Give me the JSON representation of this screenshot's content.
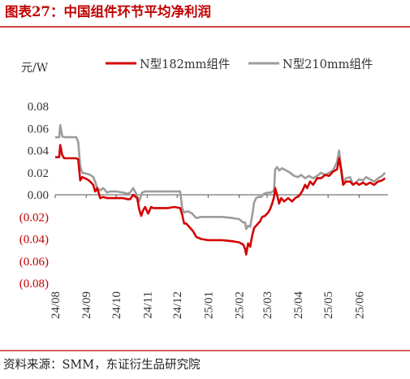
{
  "title": "图表27：中国组件环节平均净利润",
  "source": "资料来源：SMM，东证衍生品研究院",
  "chart_data": {
    "type": "line",
    "unit_label": "元/W",
    "ylim": [
      -0.08,
      0.08
    ],
    "y_ticks": [
      {
        "value": 0.08,
        "label": "0.08"
      },
      {
        "value": 0.06,
        "label": "0.06"
      },
      {
        "value": 0.04,
        "label": "0.04"
      },
      {
        "value": 0.02,
        "label": "0.02"
      },
      {
        "value": 0.0,
        "label": "0.00"
      },
      {
        "value": -0.02,
        "label": "(0.02)"
      },
      {
        "value": -0.04,
        "label": "(0.04)"
      },
      {
        "value": -0.06,
        "label": "(0.06)"
      },
      {
        "value": -0.08,
        "label": "(0.08)"
      }
    ],
    "x_range": [
      "2024-08-01",
      "2025-06-30"
    ],
    "x_ticks": [
      {
        "date": "2024-08-01",
        "label": "24/08"
      },
      {
        "date": "2024-09-01",
        "label": "24/09"
      },
      {
        "date": "2024-10-01",
        "label": "24/10"
      },
      {
        "date": "2024-11-01",
        "label": "24/11"
      },
      {
        "date": "2024-12-01",
        "label": "24/12"
      },
      {
        "date": "2025-01-01",
        "label": "25/01"
      },
      {
        "date": "2025-02-01",
        "label": "25/02"
      },
      {
        "date": "2025-03-01",
        "label": "25/03"
      },
      {
        "date": "2025-04-01",
        "label": "25/04"
      },
      {
        "date": "2025-05-01",
        "label": "25/05"
      },
      {
        "date": "2025-06-01",
        "label": "25/06"
      }
    ],
    "grid": false,
    "legend_position": "top",
    "series": [
      {
        "name": "N型182mm组件",
        "color": "#d40000",
        "points": [
          [
            "2024-08-01",
            0.034
          ],
          [
            "2024-08-05",
            0.034
          ],
          [
            "2024-08-06",
            0.045
          ],
          [
            "2024-08-08",
            0.036
          ],
          [
            "2024-08-10",
            0.033
          ],
          [
            "2024-08-22",
            0.033
          ],
          [
            "2024-08-24",
            0.032
          ],
          [
            "2024-08-26",
            0.013
          ],
          [
            "2024-08-28",
            0.016
          ],
          [
            "2024-09-02",
            0.014
          ],
          [
            "2024-09-05",
            0.012
          ],
          [
            "2024-09-08",
            0.009
          ],
          [
            "2024-09-10",
            0.003
          ],
          [
            "2024-09-12",
            0.006
          ],
          [
            "2024-09-14",
            0.0
          ],
          [
            "2024-09-15",
            -0.003
          ],
          [
            "2024-09-18",
            -0.002
          ],
          [
            "2024-09-22",
            -0.003
          ],
          [
            "2024-09-25",
            -0.003
          ],
          [
            "2024-10-01",
            -0.003
          ],
          [
            "2024-10-08",
            -0.003
          ],
          [
            "2024-10-12",
            -0.004
          ],
          [
            "2024-10-15",
            -0.004
          ],
          [
            "2024-10-18",
            0.0
          ],
          [
            "2024-10-22",
            -0.003
          ],
          [
            "2024-10-24",
            -0.013
          ],
          [
            "2024-10-26",
            -0.019
          ],
          [
            "2024-10-28",
            -0.014
          ],
          [
            "2024-10-30",
            -0.011
          ],
          [
            "2024-11-02",
            -0.017
          ],
          [
            "2024-11-05",
            -0.011
          ],
          [
            "2024-11-07",
            -0.012
          ],
          [
            "2024-11-15",
            -0.012
          ],
          [
            "2024-11-22",
            -0.012
          ],
          [
            "2024-11-28",
            -0.011
          ],
          [
            "2024-12-04",
            -0.012
          ],
          [
            "2024-12-06",
            -0.018
          ],
          [
            "2024-12-08",
            -0.026
          ],
          [
            "2024-12-10",
            -0.026
          ],
          [
            "2024-12-13",
            -0.029
          ],
          [
            "2024-12-17",
            -0.033
          ],
          [
            "2024-12-20",
            -0.038
          ],
          [
            "2024-12-25",
            -0.04
          ],
          [
            "2025-01-01",
            -0.041
          ],
          [
            "2025-01-15",
            -0.041
          ],
          [
            "2025-01-25",
            -0.042
          ],
          [
            "2025-02-01",
            -0.043
          ],
          [
            "2025-02-05",
            -0.045
          ],
          [
            "2025-02-07",
            -0.049
          ],
          [
            "2025-02-08",
            -0.054
          ],
          [
            "2025-02-10",
            -0.044
          ],
          [
            "2025-02-12",
            -0.047
          ],
          [
            "2025-02-14",
            -0.037
          ],
          [
            "2025-02-16",
            -0.03
          ],
          [
            "2025-02-18",
            -0.028
          ],
          [
            "2025-02-20",
            -0.026
          ],
          [
            "2025-02-22",
            -0.024
          ],
          [
            "2025-02-24",
            -0.02
          ],
          [
            "2025-02-27",
            -0.019
          ],
          [
            "2025-03-02",
            -0.016
          ],
          [
            "2025-03-04",
            -0.013
          ],
          [
            "2025-03-06",
            -0.008
          ],
          [
            "2025-03-08",
            -0.002
          ],
          [
            "2025-03-09",
            0.006
          ],
          [
            "2025-03-11",
            0.0
          ],
          [
            "2025-03-13",
            -0.008
          ],
          [
            "2025-03-15",
            -0.003
          ],
          [
            "2025-03-18",
            -0.006
          ],
          [
            "2025-03-22",
            -0.003
          ],
          [
            "2025-03-26",
            -0.006
          ],
          [
            "2025-03-29",
            -0.003
          ],
          [
            "2025-04-02",
            -0.001
          ],
          [
            "2025-04-05",
            0.003
          ],
          [
            "2025-04-08",
            0.009
          ],
          [
            "2025-04-10",
            0.006
          ],
          [
            "2025-04-13",
            0.012
          ],
          [
            "2025-04-16",
            0.009
          ],
          [
            "2025-04-20",
            0.015
          ],
          [
            "2025-04-24",
            0.015
          ],
          [
            "2025-04-28",
            0.018
          ],
          [
            "2025-05-02",
            0.017
          ],
          [
            "2025-05-06",
            0.021
          ],
          [
            "2025-05-10",
            0.023
          ],
          [
            "2025-05-12",
            0.033
          ],
          [
            "2025-05-14",
            0.023
          ],
          [
            "2025-05-16",
            0.009
          ],
          [
            "2025-05-19",
            0.012
          ],
          [
            "2025-05-23",
            0.012
          ],
          [
            "2025-05-26",
            0.009
          ],
          [
            "2025-05-29",
            0.011
          ],
          [
            "2025-06-01",
            0.009
          ],
          [
            "2025-06-05",
            0.011
          ],
          [
            "2025-06-08",
            0.009
          ],
          [
            "2025-06-12",
            0.011
          ],
          [
            "2025-06-16",
            0.009
          ],
          [
            "2025-06-20",
            0.012
          ],
          [
            "2025-06-24",
            0.013
          ],
          [
            "2025-06-27",
            0.015
          ]
        ]
      },
      {
        "name": "N型210mm组件",
        "color": "#9c9c9c",
        "points": [
          [
            "2024-08-01",
            0.052
          ],
          [
            "2024-08-05",
            0.052
          ],
          [
            "2024-08-06",
            0.063
          ],
          [
            "2024-08-08",
            0.053
          ],
          [
            "2024-08-10",
            0.052
          ],
          [
            "2024-08-22",
            0.052
          ],
          [
            "2024-08-24",
            0.048
          ],
          [
            "2024-08-26",
            0.026
          ],
          [
            "2024-08-28",
            0.02
          ],
          [
            "2024-09-02",
            0.019
          ],
          [
            "2024-09-05",
            0.018
          ],
          [
            "2024-09-08",
            0.016
          ],
          [
            "2024-09-10",
            0.012
          ],
          [
            "2024-09-12",
            0.006
          ],
          [
            "2024-09-15",
            0.004
          ],
          [
            "2024-09-18",
            0.006
          ],
          [
            "2024-09-22",
            0.002
          ],
          [
            "2024-09-25",
            0.003
          ],
          [
            "2024-10-01",
            0.003
          ],
          [
            "2024-10-08",
            0.002
          ],
          [
            "2024-10-12",
            0.001
          ],
          [
            "2024-10-15",
            0.002
          ],
          [
            "2024-10-18",
            0.006
          ],
          [
            "2024-10-21",
            0.001
          ],
          [
            "2024-10-24",
            -0.006
          ],
          [
            "2024-10-27",
            0.002
          ],
          [
            "2024-10-30",
            0.003
          ],
          [
            "2024-11-05",
            0.003
          ],
          [
            "2024-11-12",
            0.003
          ],
          [
            "2024-11-20",
            0.003
          ],
          [
            "2024-11-28",
            0.003
          ],
          [
            "2024-12-04",
            0.003
          ],
          [
            "2024-12-06",
            -0.012
          ],
          [
            "2024-12-08",
            -0.016
          ],
          [
            "2024-12-12",
            -0.015
          ],
          [
            "2024-12-16",
            -0.017
          ],
          [
            "2024-12-20",
            -0.021
          ],
          [
            "2024-12-25",
            -0.02
          ],
          [
            "2025-01-01",
            -0.02
          ],
          [
            "2025-01-15",
            -0.02
          ],
          [
            "2025-01-25",
            -0.021
          ],
          [
            "2025-02-01",
            -0.022
          ],
          [
            "2025-02-05",
            -0.025
          ],
          [
            "2025-02-07",
            -0.025
          ],
          [
            "2025-02-08",
            -0.031
          ],
          [
            "2025-02-10",
            -0.028
          ],
          [
            "2025-02-12",
            -0.029
          ],
          [
            "2025-02-14",
            -0.019
          ],
          [
            "2025-02-16",
            -0.007
          ],
          [
            "2025-02-18",
            -0.003
          ],
          [
            "2025-02-20",
            -0.002
          ],
          [
            "2025-02-23",
            -0.002
          ],
          [
            "2025-02-26",
            0.001
          ],
          [
            "2025-03-02",
            0.002
          ],
          [
            "2025-03-05",
            0.002
          ],
          [
            "2025-03-08",
            0.004
          ],
          [
            "2025-03-09",
            0.023
          ],
          [
            "2025-03-11",
            0.025
          ],
          [
            "2025-03-13",
            0.022
          ],
          [
            "2025-03-16",
            0.024
          ],
          [
            "2025-03-20",
            0.022
          ],
          [
            "2025-03-24",
            0.02
          ],
          [
            "2025-03-28",
            0.017
          ],
          [
            "2025-04-01",
            0.016
          ],
          [
            "2025-04-04",
            0.018
          ],
          [
            "2025-04-08",
            0.015
          ],
          [
            "2025-04-12",
            0.017
          ],
          [
            "2025-04-16",
            0.015
          ],
          [
            "2025-04-20",
            0.017
          ],
          [
            "2025-04-24",
            0.02
          ],
          [
            "2025-04-28",
            0.018
          ],
          [
            "2025-05-02",
            0.02
          ],
          [
            "2025-05-06",
            0.022
          ],
          [
            "2025-05-10",
            0.03
          ],
          [
            "2025-05-12",
            0.04
          ],
          [
            "2025-05-14",
            0.025
          ],
          [
            "2025-05-16",
            0.012
          ],
          [
            "2025-05-19",
            0.015
          ],
          [
            "2025-05-23",
            0.016
          ],
          [
            "2025-05-26",
            0.009
          ],
          [
            "2025-05-29",
            0.011
          ],
          [
            "2025-06-01",
            0.014
          ],
          [
            "2025-06-05",
            0.013
          ],
          [
            "2025-06-08",
            0.016
          ],
          [
            "2025-06-12",
            0.014
          ],
          [
            "2025-06-16",
            0.012
          ],
          [
            "2025-06-20",
            0.015
          ],
          [
            "2025-06-24",
            0.017
          ],
          [
            "2025-06-27",
            0.02
          ]
        ]
      }
    ]
  }
}
